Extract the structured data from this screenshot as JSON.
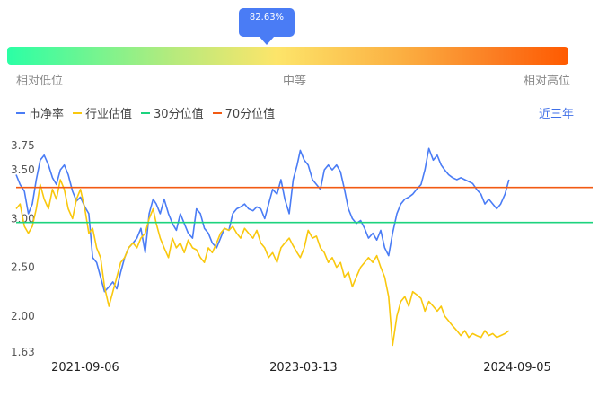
{
  "tooltip": {
    "text": "82.63%",
    "percentile": 0.8263
  },
  "gauge": {
    "low_label": "相对低位",
    "mid_label": "中等",
    "high_label": "相对高位"
  },
  "legend": [
    {
      "label": "市净率",
      "color": "#4a7cf5"
    },
    {
      "label": "行业估值",
      "color": "#f9c80e"
    },
    {
      "label": "30分位值",
      "color": "#1cd37e"
    },
    {
      "label": "70分位值",
      "color": "#f25a13"
    }
  ],
  "range_button": "近三年",
  "chart_data": {
    "type": "line",
    "ylim": [
      1.63,
      3.75
    ],
    "yticks": [
      "1.63",
      "2.00",
      "2.50",
      "3.00",
      "3.50",
      "3.75"
    ],
    "xticks": [
      "2021-09-06",
      "2023-03-13",
      "2024-09-05"
    ],
    "x_range": [
      "2021-03-15",
      "2025-03-15"
    ],
    "series": [
      {
        "name": "市净率",
        "color": "#4a7cf5",
        "points": [
          [
            "2021-03-15",
            3.45
          ],
          [
            "2021-03-25",
            3.35
          ],
          [
            "2021-04-05",
            3.28
          ],
          [
            "2021-04-15",
            3.05
          ],
          [
            "2021-04-25",
            3.15
          ],
          [
            "2021-05-05",
            3.4
          ],
          [
            "2021-05-15",
            3.6
          ],
          [
            "2021-05-25",
            3.65
          ],
          [
            "2021-06-05",
            3.55
          ],
          [
            "2021-06-15",
            3.42
          ],
          [
            "2021-06-25",
            3.35
          ],
          [
            "2021-07-05",
            3.5
          ],
          [
            "2021-07-15",
            3.55
          ],
          [
            "2021-07-25",
            3.45
          ],
          [
            "2021-08-05",
            3.28
          ],
          [
            "2021-08-15",
            3.18
          ],
          [
            "2021-08-25",
            3.22
          ],
          [
            "2021-09-05",
            3.12
          ],
          [
            "2021-09-15",
            3.05
          ],
          [
            "2021-09-25",
            2.6
          ],
          [
            "2021-10-05",
            2.55
          ],
          [
            "2021-10-15",
            2.4
          ],
          [
            "2021-10-25",
            2.25
          ],
          [
            "2021-11-05",
            2.3
          ],
          [
            "2021-11-15",
            2.35
          ],
          [
            "2021-11-25",
            2.28
          ],
          [
            "2021-12-05",
            2.45
          ],
          [
            "2021-12-15",
            2.6
          ],
          [
            "2021-12-25",
            2.7
          ],
          [
            "2022-01-05",
            2.75
          ],
          [
            "2022-01-15",
            2.8
          ],
          [
            "2022-01-25",
            2.9
          ],
          [
            "2022-02-05",
            2.65
          ],
          [
            "2022-02-15",
            3.05
          ],
          [
            "2022-02-25",
            3.2
          ],
          [
            "2022-03-05",
            3.15
          ],
          [
            "2022-03-15",
            3.05
          ],
          [
            "2022-03-25",
            3.2
          ],
          [
            "2022-04-05",
            3.05
          ],
          [
            "2022-04-15",
            2.95
          ],
          [
            "2022-04-25",
            2.88
          ],
          [
            "2022-05-05",
            3.05
          ],
          [
            "2022-05-15",
            2.95
          ],
          [
            "2022-05-25",
            2.85
          ],
          [
            "2022-06-05",
            2.8
          ],
          [
            "2022-06-15",
            3.1
          ],
          [
            "2022-06-25",
            3.05
          ],
          [
            "2022-07-05",
            2.9
          ],
          [
            "2022-07-15",
            2.85
          ],
          [
            "2022-07-25",
            2.75
          ],
          [
            "2022-08-05",
            2.7
          ],
          [
            "2022-08-15",
            2.8
          ],
          [
            "2022-08-25",
            2.9
          ],
          [
            "2022-09-05",
            2.88
          ],
          [
            "2022-09-15",
            3.05
          ],
          [
            "2022-09-25",
            3.1
          ],
          [
            "2022-10-05",
            3.12
          ],
          [
            "2022-10-15",
            3.15
          ],
          [
            "2022-10-25",
            3.1
          ],
          [
            "2022-11-05",
            3.08
          ],
          [
            "2022-11-15",
            3.12
          ],
          [
            "2022-11-25",
            3.1
          ],
          [
            "2022-12-05",
            3.0
          ],
          [
            "2022-12-15",
            3.15
          ],
          [
            "2022-12-25",
            3.3
          ],
          [
            "2023-01-05",
            3.25
          ],
          [
            "2023-01-15",
            3.4
          ],
          [
            "2023-01-25",
            3.2
          ],
          [
            "2023-02-05",
            3.05
          ],
          [
            "2023-02-15",
            3.4
          ],
          [
            "2023-02-25",
            3.55
          ],
          [
            "2023-03-05",
            3.7
          ],
          [
            "2023-03-15",
            3.6
          ],
          [
            "2023-03-25",
            3.55
          ],
          [
            "2023-04-05",
            3.4
          ],
          [
            "2023-04-15",
            3.35
          ],
          [
            "2023-04-25",
            3.3
          ],
          [
            "2023-05-05",
            3.5
          ],
          [
            "2023-05-15",
            3.55
          ],
          [
            "2023-05-25",
            3.5
          ],
          [
            "2023-06-05",
            3.55
          ],
          [
            "2023-06-15",
            3.48
          ],
          [
            "2023-06-25",
            3.3
          ],
          [
            "2023-07-05",
            3.1
          ],
          [
            "2023-07-15",
            3.0
          ],
          [
            "2023-07-25",
            2.95
          ],
          [
            "2023-08-05",
            2.98
          ],
          [
            "2023-08-15",
            2.9
          ],
          [
            "2023-08-25",
            2.8
          ],
          [
            "2023-09-05",
            2.85
          ],
          [
            "2023-09-15",
            2.78
          ],
          [
            "2023-09-25",
            2.88
          ],
          [
            "2023-10-05",
            2.7
          ],
          [
            "2023-10-15",
            2.62
          ],
          [
            "2023-10-25",
            2.85
          ],
          [
            "2023-11-05",
            3.05
          ],
          [
            "2023-11-15",
            3.15
          ],
          [
            "2023-11-25",
            3.2
          ],
          [
            "2023-12-05",
            3.22
          ],
          [
            "2023-12-15",
            3.25
          ],
          [
            "2023-12-25",
            3.3
          ],
          [
            "2024-01-05",
            3.35
          ],
          [
            "2024-01-15",
            3.5
          ],
          [
            "2024-01-25",
            3.72
          ],
          [
            "2024-02-05",
            3.6
          ],
          [
            "2024-02-15",
            3.65
          ],
          [
            "2024-02-25",
            3.55
          ],
          [
            "2024-03-05",
            3.5
          ],
          [
            "2024-03-15",
            3.45
          ],
          [
            "2024-03-25",
            3.42
          ],
          [
            "2024-04-05",
            3.4
          ],
          [
            "2024-04-15",
            3.42
          ],
          [
            "2024-04-25",
            3.4
          ],
          [
            "2024-05-05",
            3.38
          ],
          [
            "2024-05-15",
            3.36
          ],
          [
            "2024-05-25",
            3.3
          ],
          [
            "2024-06-05",
            3.25
          ],
          [
            "2024-06-15",
            3.15
          ],
          [
            "2024-06-25",
            3.2
          ],
          [
            "2024-07-05",
            3.15
          ],
          [
            "2024-07-15",
            3.1
          ],
          [
            "2024-07-25",
            3.15
          ],
          [
            "2024-08-05",
            3.25
          ],
          [
            "2024-08-15",
            3.4
          ]
        ]
      },
      {
        "name": "行业估值",
        "color": "#f9c80e",
        "points": [
          [
            "2021-03-15",
            3.1
          ],
          [
            "2021-03-25",
            3.15
          ],
          [
            "2021-04-05",
            2.92
          ],
          [
            "2021-04-15",
            2.85
          ],
          [
            "2021-04-25",
            2.92
          ],
          [
            "2021-05-05",
            3.1
          ],
          [
            "2021-05-15",
            3.35
          ],
          [
            "2021-05-25",
            3.2
          ],
          [
            "2021-06-05",
            3.1
          ],
          [
            "2021-06-15",
            3.3
          ],
          [
            "2021-06-25",
            3.2
          ],
          [
            "2021-07-05",
            3.4
          ],
          [
            "2021-07-15",
            3.3
          ],
          [
            "2021-07-25",
            3.1
          ],
          [
            "2021-08-05",
            3.0
          ],
          [
            "2021-08-15",
            3.2
          ],
          [
            "2021-08-25",
            3.3
          ],
          [
            "2021-09-05",
            3.1
          ],
          [
            "2021-09-15",
            2.85
          ],
          [
            "2021-09-25",
            2.9
          ],
          [
            "2021-10-05",
            2.7
          ],
          [
            "2021-10-15",
            2.6
          ],
          [
            "2021-10-25",
            2.3
          ],
          [
            "2021-11-05",
            2.1
          ],
          [
            "2021-11-15",
            2.25
          ],
          [
            "2021-11-25",
            2.4
          ],
          [
            "2021-12-05",
            2.55
          ],
          [
            "2021-12-15",
            2.6
          ],
          [
            "2021-12-25",
            2.7
          ],
          [
            "2022-01-05",
            2.75
          ],
          [
            "2022-01-15",
            2.7
          ],
          [
            "2022-01-25",
            2.8
          ],
          [
            "2022-02-05",
            2.85
          ],
          [
            "2022-02-15",
            3.0
          ],
          [
            "2022-02-25",
            3.1
          ],
          [
            "2022-03-05",
            2.95
          ],
          [
            "2022-03-15",
            2.8
          ],
          [
            "2022-03-25",
            2.7
          ],
          [
            "2022-04-05",
            2.6
          ],
          [
            "2022-04-15",
            2.8
          ],
          [
            "2022-04-25",
            2.7
          ],
          [
            "2022-05-05",
            2.75
          ],
          [
            "2022-05-15",
            2.65
          ],
          [
            "2022-05-25",
            2.78
          ],
          [
            "2022-06-05",
            2.7
          ],
          [
            "2022-06-15",
            2.68
          ],
          [
            "2022-06-25",
            2.6
          ],
          [
            "2022-07-05",
            2.55
          ],
          [
            "2022-07-15",
            2.7
          ],
          [
            "2022-07-25",
            2.65
          ],
          [
            "2022-08-05",
            2.75
          ],
          [
            "2022-08-15",
            2.85
          ],
          [
            "2022-08-25",
            2.9
          ],
          [
            "2022-09-05",
            2.88
          ],
          [
            "2022-09-15",
            2.92
          ],
          [
            "2022-09-25",
            2.85
          ],
          [
            "2022-10-05",
            2.8
          ],
          [
            "2022-10-15",
            2.9
          ],
          [
            "2022-10-25",
            2.85
          ],
          [
            "2022-11-05",
            2.8
          ],
          [
            "2022-11-15",
            2.88
          ],
          [
            "2022-11-25",
            2.75
          ],
          [
            "2022-12-05",
            2.7
          ],
          [
            "2022-12-15",
            2.6
          ],
          [
            "2022-12-25",
            2.65
          ],
          [
            "2023-01-05",
            2.55
          ],
          [
            "2023-01-15",
            2.7
          ],
          [
            "2023-01-25",
            2.75
          ],
          [
            "2023-02-05",
            2.8
          ],
          [
            "2023-02-15",
            2.72
          ],
          [
            "2023-02-25",
            2.65
          ],
          [
            "2023-03-05",
            2.6
          ],
          [
            "2023-03-15",
            2.7
          ],
          [
            "2023-03-25",
            2.88
          ],
          [
            "2023-04-05",
            2.8
          ],
          [
            "2023-04-15",
            2.82
          ],
          [
            "2023-04-25",
            2.7
          ],
          [
            "2023-05-05",
            2.65
          ],
          [
            "2023-05-15",
            2.55
          ],
          [
            "2023-05-25",
            2.6
          ],
          [
            "2023-06-05",
            2.5
          ],
          [
            "2023-06-15",
            2.55
          ],
          [
            "2023-06-25",
            2.4
          ],
          [
            "2023-07-05",
            2.45
          ],
          [
            "2023-07-15",
            2.3
          ],
          [
            "2023-07-25",
            2.4
          ],
          [
            "2023-08-05",
            2.5
          ],
          [
            "2023-08-15",
            2.55
          ],
          [
            "2023-08-25",
            2.6
          ],
          [
            "2023-09-05",
            2.55
          ],
          [
            "2023-09-15",
            2.62
          ],
          [
            "2023-09-25",
            2.5
          ],
          [
            "2023-10-05",
            2.4
          ],
          [
            "2023-10-15",
            2.2
          ],
          [
            "2023-10-25",
            1.7
          ],
          [
            "2023-11-05",
            2.0
          ],
          [
            "2023-11-15",
            2.15
          ],
          [
            "2023-11-25",
            2.2
          ],
          [
            "2023-12-05",
            2.1
          ],
          [
            "2023-12-15",
            2.25
          ],
          [
            "2023-12-25",
            2.22
          ],
          [
            "2024-01-05",
            2.18
          ],
          [
            "2024-01-15",
            2.05
          ],
          [
            "2024-01-25",
            2.15
          ],
          [
            "2024-02-05",
            2.1
          ],
          [
            "2024-02-15",
            2.05
          ],
          [
            "2024-02-25",
            2.1
          ],
          [
            "2024-03-05",
            2.0
          ],
          [
            "2024-03-15",
            1.95
          ],
          [
            "2024-03-25",
            1.9
          ],
          [
            "2024-04-05",
            1.85
          ],
          [
            "2024-04-15",
            1.8
          ],
          [
            "2024-04-25",
            1.85
          ],
          [
            "2024-05-05",
            1.78
          ],
          [
            "2024-05-15",
            1.82
          ],
          [
            "2024-05-25",
            1.8
          ],
          [
            "2024-06-05",
            1.78
          ],
          [
            "2024-06-15",
            1.85
          ],
          [
            "2024-06-25",
            1.8
          ],
          [
            "2024-07-05",
            1.82
          ],
          [
            "2024-07-15",
            1.78
          ],
          [
            "2024-07-25",
            1.8
          ],
          [
            "2024-08-05",
            1.82
          ],
          [
            "2024-08-15",
            1.85
          ]
        ]
      }
    ],
    "reference_lines": [
      {
        "name": "30分位值",
        "value": 2.96,
        "color": "#1cd37e"
      },
      {
        "name": "70分位值",
        "value": 3.32,
        "color": "#f25a13"
      }
    ],
    "grid": false
  }
}
